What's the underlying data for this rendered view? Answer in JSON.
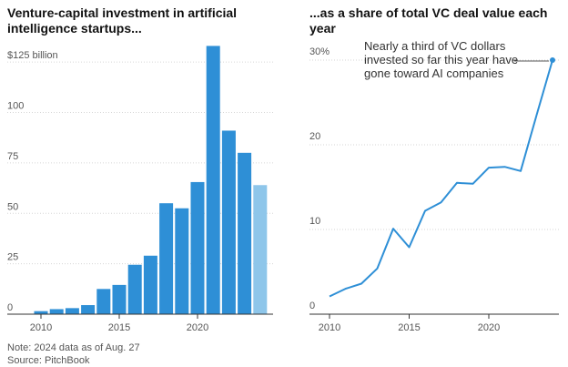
{
  "chart_data": [
    {
      "type": "bar",
      "title": "Venture-capital investment in artificial intelligence startups...",
      "unit_label": "$125 billion",
      "categories": [
        "2010",
        "2011",
        "2012",
        "2013",
        "2014",
        "2015",
        "2016",
        "2017",
        "2018",
        "2019",
        "2020",
        "2021",
        "2022",
        "2023",
        "2024"
      ],
      "values": [
        1.5,
        2.5,
        3,
        4.5,
        12.5,
        14.5,
        24.5,
        29,
        55,
        52.5,
        65.5,
        133,
        91,
        80,
        64
      ],
      "highlight_last": true,
      "colors": {
        "bar": "#2e8fd6",
        "bar_partial": "#8ec6ea"
      },
      "ylim": [
        0,
        135
      ],
      "yticks": [
        0,
        25,
        50,
        75,
        100,
        125
      ],
      "ytick_labels": [
        "0",
        "25",
        "50",
        "75",
        "100",
        "$125 billion"
      ],
      "xticks": [
        "2010",
        "2015",
        "2020"
      ],
      "grid": true
    },
    {
      "type": "line",
      "title": "...as a share of total VC deal value each year",
      "x": [
        2010,
        2011,
        2012,
        2013,
        2014,
        2015,
        2016,
        2017,
        2018,
        2019,
        2020,
        2021,
        2022,
        2023,
        2024
      ],
      "values": [
        2.1,
        3.0,
        3.6,
        5.4,
        10.1,
        7.9,
        12.2,
        13.2,
        15.5,
        15.4,
        17.3,
        17.4,
        16.9,
        23.5,
        30.0
      ],
      "colors": {
        "line": "#2e8fd6",
        "end_dot": "#2e8fd6"
      },
      "ylim": [
        0,
        32
      ],
      "yticks": [
        0,
        10,
        20,
        30
      ],
      "ytick_labels": [
        "0",
        "10",
        "20",
        "30%"
      ],
      "xticks": [
        "2010",
        "2015",
        "2020"
      ],
      "grid": true,
      "annotation": "Nearly a third of VC dollars invested so far this year have gone toward AI companies",
      "annotation_lines": [
        "Nearly a third of VC dollars",
        "invested so far this year have",
        "gone toward AI companies"
      ]
    }
  ],
  "footer": {
    "note": "Note: 2024 data as of Aug. 27",
    "source": "Source: PitchBook"
  },
  "titles": {
    "left_line1": "Venture-capital investment in artificial",
    "left_line2": "intelligence startups...",
    "right": "...as a share of total VC deal value each year"
  }
}
